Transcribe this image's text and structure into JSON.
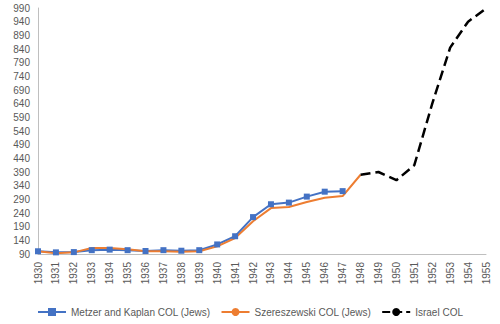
{
  "chart_data": {
    "type": "line",
    "categories": [
      "1930",
      "1931",
      "1932",
      "1933",
      "1934",
      "1935",
      "1936",
      "1937",
      "1938",
      "1939",
      "1940",
      "1941",
      "1942",
      "1943",
      "1944",
      "1945",
      "1946",
      "1947",
      "1948",
      "1949",
      "1950",
      "1951",
      "1952",
      "1953",
      "1954",
      "1955"
    ],
    "series": [
      {
        "name": "Metzer and Kaplan COL (Jews)",
        "color": "#4472c4",
        "marker": "square",
        "line_style": "solid",
        "values": [
          100,
          96,
          97,
          104,
          106,
          104,
          101,
          104,
          102,
          104,
          125,
          155,
          225,
          272,
          278,
          300,
          318,
          320,
          null,
          null,
          null,
          null,
          null,
          null,
          null,
          null
        ]
      },
      {
        "name": "Szereszewski COL (Jews)",
        "color": "#ed7d31",
        "line_style": "solid",
        "values": [
          100,
          93,
          96,
          112,
          112,
          107,
          100,
          100,
          98,
          100,
          118,
          148,
          210,
          258,
          262,
          280,
          296,
          302,
          380,
          null,
          null,
          null,
          null,
          null,
          null,
          null
        ]
      },
      {
        "name": "Israel COL",
        "color": "#000000",
        "line_style": "dashed",
        "values": [
          null,
          null,
          null,
          null,
          null,
          null,
          null,
          null,
          null,
          null,
          null,
          null,
          null,
          null,
          null,
          null,
          null,
          null,
          380,
          390,
          360,
          415,
          640,
          845,
          940,
          988
        ]
      }
    ],
    "ylim": [
      90,
      990
    ],
    "yticks": [
      90,
      140,
      190,
      240,
      290,
      340,
      390,
      440,
      490,
      540,
      590,
      640,
      690,
      740,
      790,
      840,
      890,
      940,
      990
    ],
    "grid": false,
    "legend": "bottom"
  }
}
